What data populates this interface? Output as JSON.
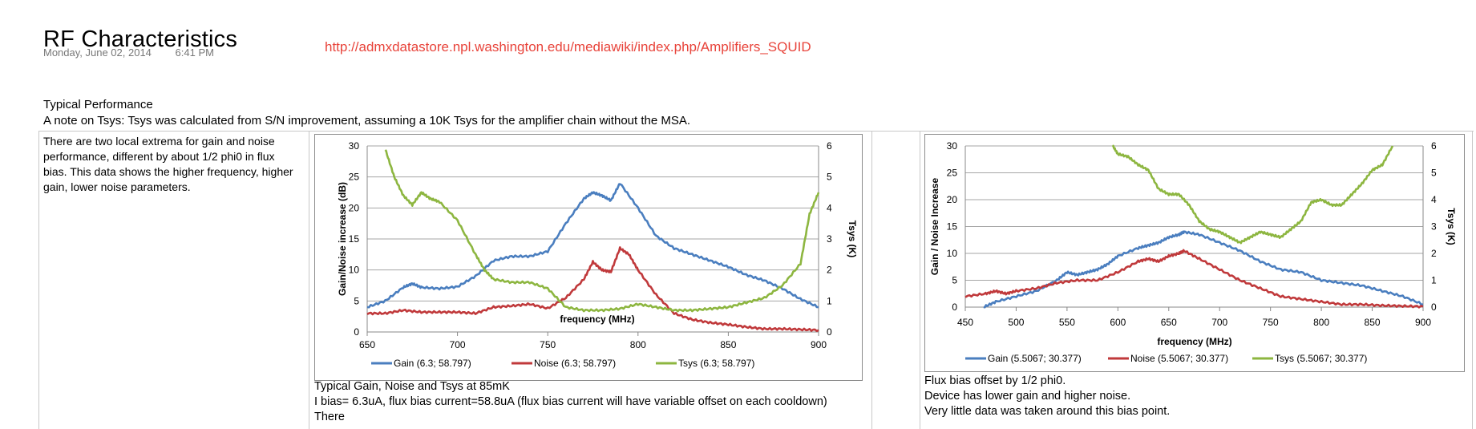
{
  "page": {
    "title": "RF Characteristics",
    "date": "Monday, June 02, 2014",
    "time": "6:41 PM",
    "link": "http://admxdatastore.npl.washington.edu/mediawiki/index.php/Amplifiers_SQUID",
    "section_title": "Typical Performance",
    "note": "A note on Tsys: Tsys was calculated from S/N improvement, assuming a 10K Tsys for the amplifier chain without the MSA."
  },
  "left_cell": {
    "lines": [
      "There are two local extrema for gain and noise",
      "performance, different by about 1/2 phi0 in flux",
      "bias. This data shows the higher frequency, higher",
      "gain, lower noise parameters."
    ]
  },
  "caption1": {
    "lines": [
      "Typical Gain, Noise and Tsys at 85mK",
      "I bias= 6.3uA, flux bias current=58.8uA (flux bias current will have variable offset on each cooldown)",
      "There"
    ]
  },
  "caption2": {
    "lines": [
      "Flux bias offset by 1/2 phi0.",
      "Device has lower gain and higher noise.",
      "Very little data was taken around this bias point."
    ]
  },
  "colors": {
    "gain": "#4a7ebf",
    "noise": "#c0393b",
    "tsys": "#8db640",
    "grid": "#a6a6a6",
    "link": "#e8433a"
  },
  "chart_data": [
    {
      "type": "line",
      "title": "",
      "xlabel": "frequency (MHz)",
      "ylabel": "Gain/Noise increase (dB)",
      "y2label": "Tsys (K)",
      "xlim": [
        650,
        900
      ],
      "ylim": [
        0,
        30
      ],
      "y2lim": [
        0,
        6
      ],
      "xticks": [
        "650",
        "700",
        "750",
        "800",
        "850",
        "900"
      ],
      "yticks": [
        "0",
        "5",
        "10",
        "15",
        "20",
        "25",
        "30"
      ],
      "y2ticks": [
        "0",
        "1",
        "2",
        "3",
        "4",
        "5",
        "6"
      ],
      "grid": true,
      "legend": "bottom",
      "series": [
        {
          "name": "Gain (6.3; 58.797)",
          "axis": "y",
          "color": "#4a7ebf",
          "x": [
            650,
            660,
            670,
            675,
            680,
            690,
            700,
            710,
            720,
            730,
            740,
            750,
            760,
            770,
            775,
            780,
            785,
            790,
            800,
            810,
            820,
            830,
            840,
            850,
            860,
            870,
            880,
            890,
            900
          ],
          "y": [
            4,
            5,
            7.2,
            7.8,
            7.2,
            7,
            7.3,
            9,
            11.5,
            12.2,
            12.2,
            13,
            17.5,
            21.5,
            22.5,
            22,
            21.2,
            24,
            20,
            15.5,
            13.5,
            12.5,
            11.5,
            10.5,
            9.2,
            8.3,
            7,
            5.3,
            4
          ]
        },
        {
          "name": "Noise (6.3; 58.797)",
          "axis": "y",
          "color": "#c0393b",
          "x": [
            650,
            660,
            670,
            680,
            690,
            700,
            710,
            720,
            730,
            740,
            750,
            760,
            770,
            775,
            780,
            785,
            790,
            795,
            800,
            810,
            820,
            830,
            840,
            850,
            860,
            870,
            880,
            890,
            900
          ],
          "y": [
            3,
            3,
            3.5,
            3.2,
            3.2,
            3.2,
            3,
            4,
            4.2,
            4.5,
            3.8,
            5.5,
            8.5,
            11.3,
            10,
            9.7,
            13.5,
            12.5,
            10,
            6,
            3,
            2,
            1.5,
            1.2,
            0.8,
            0.5,
            0.5,
            0.4,
            0.3
          ]
        },
        {
          "name": "Tsys (6.3; 58.797)",
          "axis": "y2",
          "color": "#8db640",
          "x": [
            660,
            665,
            670,
            675,
            680,
            685,
            690,
            700,
            710,
            715,
            720,
            730,
            740,
            750,
            760,
            770,
            780,
            790,
            800,
            810,
            820,
            830,
            840,
            850,
            860,
            870,
            880,
            890,
            895,
            900
          ],
          "y": [
            5.9,
            5,
            4.4,
            4.1,
            4.5,
            4.3,
            4.2,
            3.6,
            2.5,
            2,
            1.7,
            1.6,
            1.6,
            1.4,
            0.8,
            0.7,
            0.7,
            0.75,
            0.9,
            0.8,
            0.7,
            0.7,
            0.75,
            0.8,
            0.95,
            1.1,
            1.5,
            2.2,
            3.8,
            4.5
          ]
        }
      ]
    },
    {
      "type": "line",
      "title": "",
      "xlabel": "frequency (MHz)",
      "ylabel": "Gain / Noise Increase",
      "y2label": "Tsys (K)",
      "xlim": [
        450,
        900
      ],
      "ylim": [
        0,
        30
      ],
      "y2lim": [
        0,
        6
      ],
      "xticks": [
        "450",
        "500",
        "550",
        "600",
        "650",
        "700",
        "750",
        "800",
        "850",
        "900"
      ],
      "yticks": [
        "0",
        "5",
        "10",
        "15",
        "20",
        "25",
        "30"
      ],
      "y2ticks": [
        "0",
        "1",
        "2",
        "3",
        "4",
        "5",
        "6"
      ],
      "grid": true,
      "legend": "bottom",
      "series": [
        {
          "name": "Gain (5.5067; 30.377)",
          "axis": "y",
          "color": "#4a7ebf",
          "x": [
            468,
            480,
            500,
            520,
            540,
            550,
            560,
            570,
            580,
            590,
            600,
            620,
            630,
            640,
            650,
            660,
            665,
            680,
            700,
            720,
            740,
            760,
            780,
            800,
            820,
            840,
            860,
            880,
            900
          ],
          "y": [
            0,
            1,
            2,
            3,
            5,
            6.5,
            6,
            6.5,
            7,
            8,
            9.5,
            11,
            11.5,
            12,
            13,
            13.5,
            14,
            13.5,
            12,
            10.5,
            8.5,
            7,
            6.5,
            5,
            4.5,
            4,
            3,
            2,
            0.5
          ]
        },
        {
          "name": "Noise (5.5067; 30.377)",
          "axis": "y",
          "color": "#c0393b",
          "x": [
            450,
            470,
            480,
            490,
            500,
            520,
            540,
            560,
            580,
            600,
            620,
            630,
            640,
            650,
            660,
            665,
            680,
            700,
            720,
            740,
            760,
            780,
            800,
            820,
            840,
            860,
            880,
            900
          ],
          "y": [
            2,
            2.5,
            3,
            2.5,
            3,
            3.5,
            4.5,
            5,
            5,
            6.5,
            8.5,
            9,
            8.5,
            9.5,
            10,
            10.5,
            9,
            7,
            5,
            3.5,
            2,
            1.5,
            1,
            0.5,
            0.5,
            0.3,
            0.2,
            0.1
          ]
        },
        {
          "name": "Tsys (5.5067; 30.377)",
          "axis": "y2",
          "color": "#8db640",
          "x": [
            595,
            600,
            610,
            620,
            630,
            640,
            650,
            660,
            670,
            680,
            690,
            700,
            710,
            720,
            730,
            740,
            750,
            760,
            770,
            780,
            790,
            800,
            810,
            820,
            830,
            840,
            850,
            860,
            870
          ],
          "y": [
            6,
            5.7,
            5.6,
            5.3,
            5.1,
            4.4,
            4.2,
            4.2,
            3.8,
            3.2,
            2.9,
            2.8,
            2.6,
            2.4,
            2.6,
            2.8,
            2.7,
            2.6,
            2.9,
            3.2,
            3.9,
            4,
            3.8,
            3.8,
            4.2,
            4.6,
            5.1,
            5.3,
            6
          ]
        }
      ]
    }
  ]
}
